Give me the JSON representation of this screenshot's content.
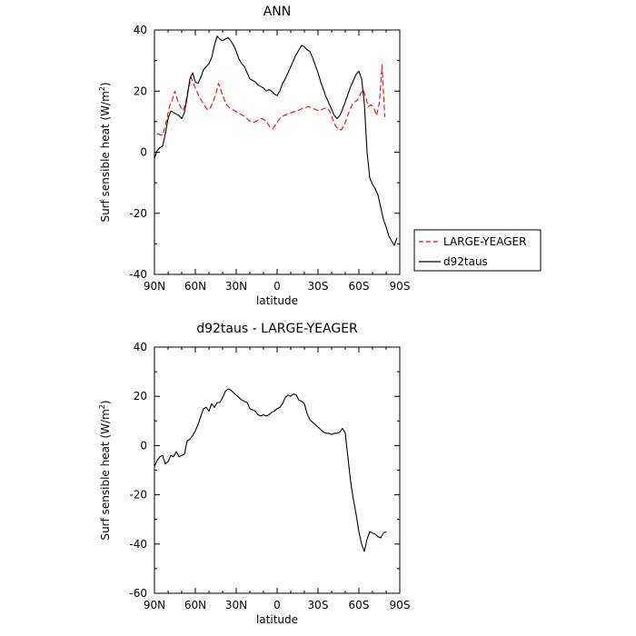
{
  "chart_data": [
    {
      "type": "line",
      "title": "ANN",
      "xlabel": "latitude",
      "ylabel": "Surf sensible heat (W/m",
      "ylabel_sup": "2",
      "ylabel_close": ")",
      "xlim": [
        90,
        -90
      ],
      "ylim": [
        -40,
        40
      ],
      "xticks": [
        {
          "value": 90,
          "label": "90N"
        },
        {
          "value": 60,
          "label": "60N"
        },
        {
          "value": 30,
          "label": "30N"
        },
        {
          "value": 0,
          "label": "0"
        },
        {
          "value": -30,
          "label": "30S"
        },
        {
          "value": -60,
          "label": "60S"
        },
        {
          "value": -90,
          "label": "90S"
        }
      ],
      "yticks": [
        -40,
        -20,
        0,
        20,
        40
      ],
      "grid": false,
      "legend": "right",
      "series": [
        {
          "name": "LARGE-YEAGER",
          "color": "#ff0000",
          "dash": "dashed",
          "x": [
            88,
            84,
            81,
            79,
            77,
            75,
            73,
            71,
            69,
            67,
            65,
            63,
            61,
            59,
            57,
            55,
            53,
            51,
            49,
            47,
            45,
            43,
            41,
            39,
            37,
            35,
            33,
            31,
            29,
            27,
            25,
            23,
            21,
            19,
            17,
            15,
            13,
            11,
            9,
            7,
            5,
            3,
            1,
            -1,
            -3,
            -5,
            -7,
            -9,
            -11,
            -13,
            -15,
            -17,
            -19,
            -21,
            -23,
            -25,
            -27,
            -29,
            -31,
            -33,
            -35,
            -37,
            -39,
            -41,
            -43,
            -45,
            -47,
            -49,
            -51,
            -53,
            -55,
            -57,
            -59,
            -61,
            -63,
            -65,
            -67,
            -69,
            -71,
            -73,
            -75,
            -77,
            -79
          ],
          "values": [
            6.0,
            5.5,
            10.5,
            15.0,
            17.0,
            20.0,
            17.0,
            15.0,
            13.5,
            16.5,
            21.0,
            24.5,
            22.0,
            20.0,
            18.0,
            16.5,
            15.0,
            13.8,
            14.5,
            16.5,
            19.0,
            22.5,
            20.0,
            17.5,
            15.5,
            14.5,
            14.0,
            13.5,
            13.0,
            12.5,
            12.0,
            11.5,
            10.5,
            10.0,
            9.8,
            10.2,
            10.8,
            11.0,
            10.5,
            9.5,
            8.0,
            7.8,
            9.0,
            10.5,
            11.5,
            12.0,
            12.3,
            12.7,
            13.0,
            13.3,
            13.6,
            14.0,
            14.3,
            14.6,
            14.9,
            14.6,
            14.2,
            13.8,
            13.6,
            14.0,
            14.4,
            14.5,
            13.0,
            10.5,
            8.5,
            7.5,
            7.3,
            8.5,
            11.0,
            13.5,
            15.5,
            16.5,
            17.0,
            19.0,
            20.5,
            18.0,
            15.0,
            15.5,
            14.5,
            12.0,
            16.0,
            28.5,
            11.5
          ]
        },
        {
          "name": "d92taus",
          "color": "#000000",
          "dash": "solid",
          "x": [
            90,
            88,
            86,
            84,
            82,
            80,
            78,
            76,
            74,
            72,
            70,
            68,
            66,
            64,
            62,
            60,
            58,
            56,
            54,
            52,
            50,
            48,
            46,
            44,
            42,
            40,
            38,
            36,
            34,
            32,
            30,
            28,
            26,
            24,
            22,
            20,
            18,
            16,
            14,
            12,
            10,
            8,
            6,
            4,
            2,
            0,
            -2,
            -4,
            -6,
            -8,
            -10,
            -12,
            -14,
            -16,
            -18,
            -20,
            -22,
            -24,
            -26,
            -28,
            -30,
            -32,
            -34,
            -36,
            -38,
            -40,
            -42,
            -44,
            -46,
            -48,
            -50,
            -52,
            -54,
            -56,
            -58,
            -60,
            -62,
            -64,
            -66,
            -68,
            -70,
            -72,
            -74,
            -76,
            -78,
            -80,
            -82,
            -84,
            -86,
            -88
          ],
          "values": [
            -2.0,
            0.5,
            1.5,
            2.0,
            6.0,
            11.0,
            13.5,
            13.0,
            12.5,
            12.0,
            11.0,
            13.0,
            18.0,
            24.0,
            26.0,
            23.0,
            22.5,
            24.5,
            27.0,
            28.0,
            29.0,
            31.0,
            35.0,
            38.0,
            37.0,
            36.5,
            37.0,
            37.5,
            36.5,
            35.0,
            33.0,
            30.5,
            29.0,
            28.0,
            26.0,
            24.0,
            23.5,
            23.0,
            22.0,
            21.5,
            21.0,
            20.0,
            20.5,
            20.0,
            19.0,
            18.5,
            20.0,
            22.5,
            24.0,
            26.0,
            28.0,
            30.0,
            32.0,
            33.5,
            35.0,
            34.5,
            33.5,
            33.0,
            31.0,
            28.5,
            26.0,
            23.0,
            20.5,
            18.0,
            16.0,
            14.0,
            12.0,
            11.0,
            12.0,
            14.0,
            16.5,
            19.0,
            21.5,
            23.5,
            25.5,
            26.5,
            24.0,
            16.0,
            0.0,
            -8.5,
            -10.5,
            -12.0,
            -14.0,
            -18.0,
            -22.0,
            -24.5,
            -27.5,
            -29.0,
            -30.5,
            -28.0
          ]
        }
      ]
    },
    {
      "type": "line",
      "title": "d92taus - LARGE-YEAGER",
      "xlabel": "latitude",
      "ylabel": "Surf sensible heat (W/m",
      "ylabel_sup": "2",
      "ylabel_close": ")",
      "xlim": [
        90,
        -90
      ],
      "ylim": [
        -60,
        40
      ],
      "xticks": [
        {
          "value": 90,
          "label": "90N"
        },
        {
          "value": 60,
          "label": "60N"
        },
        {
          "value": 30,
          "label": "30N"
        },
        {
          "value": 0,
          "label": "0"
        },
        {
          "value": -30,
          "label": "30S"
        },
        {
          "value": -60,
          "label": "60S"
        },
        {
          "value": -90,
          "label": "90S"
        }
      ],
      "yticks": [
        -60,
        -40,
        -20,
        0,
        20,
        40
      ],
      "grid": false,
      "series": [
        {
          "color": "#000000",
          "dash": "solid",
          "x": [
            90,
            88,
            86,
            84,
            82,
            80,
            78,
            76,
            74,
            72,
            70,
            68,
            66,
            64,
            62,
            60,
            58,
            56,
            54,
            52,
            50,
            48,
            46,
            44,
            42,
            40,
            38,
            36,
            34,
            32,
            30,
            28,
            26,
            24,
            22,
            20,
            18,
            16,
            14,
            12,
            10,
            8,
            6,
            4,
            2,
            0,
            -2,
            -4,
            -6,
            -8,
            -10,
            -12,
            -14,
            -16,
            -18,
            -20,
            -22,
            -24,
            -26,
            -28,
            -30,
            -32,
            -34,
            -36,
            -38,
            -40,
            -42,
            -44,
            -46,
            -48,
            -50,
            -52,
            -54,
            -56,
            -58,
            -60,
            -62,
            -64,
            -66,
            -68,
            -70,
            -72,
            -74,
            -76,
            -78,
            -80
          ],
          "values": [
            -8.5,
            -6.0,
            -4.5,
            -4.0,
            -7.5,
            -6.5,
            -4.0,
            -4.5,
            -2.5,
            -4.5,
            -4.0,
            -3.5,
            2.0,
            2.5,
            4.0,
            6.0,
            8.5,
            12.0,
            15.0,
            15.5,
            14.0,
            17.0,
            15.5,
            17.5,
            17.5,
            19.5,
            22.0,
            23.0,
            22.5,
            21.5,
            20.5,
            19.5,
            18.5,
            18.0,
            17.5,
            15.0,
            14.5,
            14.0,
            12.5,
            12.0,
            12.5,
            12.0,
            12.5,
            13.5,
            14.0,
            15.0,
            15.5,
            17.0,
            19.5,
            20.5,
            20.0,
            21.0,
            20.5,
            18.5,
            18.0,
            17.0,
            13.0,
            10.5,
            9.5,
            8.5,
            7.5,
            6.5,
            5.5,
            5.0,
            5.0,
            4.5,
            5.0,
            5.0,
            5.5,
            7.0,
            5.0,
            -5.0,
            -15.0,
            -22.0,
            -28.0,
            -35.0,
            -40.0,
            -43.0,
            -38.0,
            -35.0,
            -35.5,
            -36.0,
            -37.0,
            -37.5,
            -35.5,
            -35.0
          ]
        }
      ]
    }
  ]
}
